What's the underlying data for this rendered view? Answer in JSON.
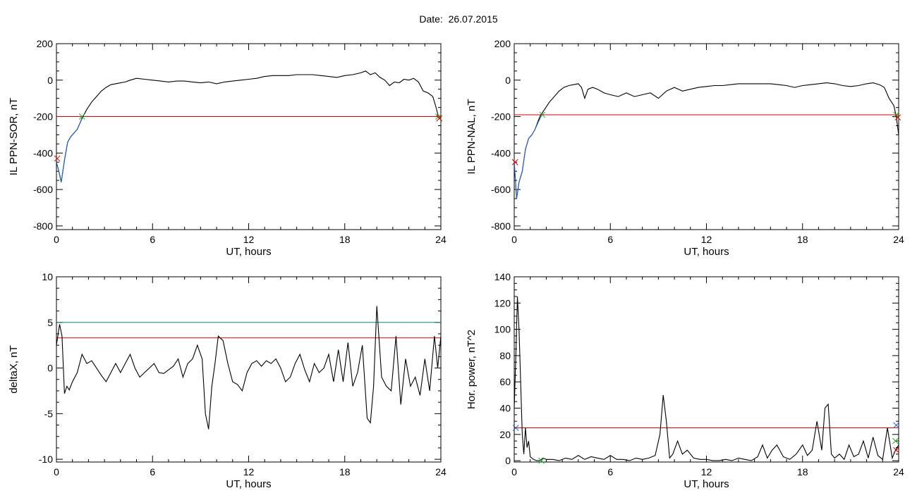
{
  "title": "Date:  26.07.2015",
  "chart_data": [
    {
      "type": "line",
      "xlabel": "UT, hours",
      "ylabel": "IL PPN-SOR, nT",
      "xlim": [
        0,
        24
      ],
      "ylim": [
        -820,
        200
      ],
      "xticks": [
        0,
        6,
        12,
        18,
        24
      ],
      "yticks": [
        -800,
        -600,
        -400,
        -200,
        0,
        200
      ],
      "series": [
        {
          "color": "#000000",
          "x": [
            0,
            0.15,
            0.3,
            0.5,
            0.7,
            0.9,
            1.1,
            1.3,
            1.6,
            1.9,
            2.2,
            2.5,
            2.8,
            3.1,
            3.4,
            3.7,
            4,
            4.3,
            4.6,
            5,
            5.5,
            6,
            6.5,
            7,
            7.5,
            8,
            8.5,
            9,
            9.5,
            10,
            10.5,
            11,
            11.5,
            12,
            12.5,
            13,
            13.5,
            14,
            14.5,
            15,
            15.5,
            16,
            16.5,
            17,
            17.5,
            18,
            18.5,
            19,
            19.3,
            19.6,
            19.9,
            20.2,
            20.5,
            20.8,
            21.1,
            21.4,
            21.7,
            22,
            22.3,
            22.6,
            22.9,
            23.2,
            23.5,
            23.7,
            23.85,
            24
          ],
          "y": [
            -450,
            -500,
            -560,
            -440,
            -340,
            -310,
            -290,
            -270,
            -210,
            -160,
            -120,
            -90,
            -60,
            -40,
            -25,
            -20,
            -15,
            -10,
            0,
            10,
            5,
            0,
            -5,
            -10,
            -5,
            -5,
            -10,
            -15,
            -10,
            -20,
            -10,
            -5,
            0,
            5,
            10,
            20,
            25,
            25,
            25,
            30,
            30,
            30,
            25,
            20,
            15,
            25,
            30,
            40,
            50,
            30,
            40,
            15,
            0,
            -30,
            -10,
            -15,
            5,
            0,
            10,
            -10,
            -60,
            -70,
            -90,
            -150,
            -200,
            -210
          ]
        },
        {
          "color": "#1f5fd0",
          "x": [
            0,
            0.15,
            0.3,
            0.5,
            0.7,
            0.9,
            1.1,
            1.3,
            1.5,
            1.6
          ],
          "y": [
            -450,
            -500,
            -560,
            -440,
            -340,
            -310,
            -290,
            -270,
            -230,
            -205
          ]
        }
      ],
      "hlines": [
        {
          "y": -200,
          "color": "#dd0000"
        }
      ],
      "markers": [
        {
          "x": 0.05,
          "y": -430,
          "color": "#dd0000"
        },
        {
          "x": 1.6,
          "y": -200,
          "color": "#22aa22"
        },
        {
          "x": 23.85,
          "y": -200,
          "color": "#22aa22"
        },
        {
          "x": 23.9,
          "y": -210,
          "color": "#dd0000"
        }
      ]
    },
    {
      "type": "line",
      "xlabel": "UT, hours",
      "ylabel": "IL PPN-NAL, nT",
      "xlim": [
        0,
        24
      ],
      "ylim": [
        -820,
        200
      ],
      "xticks": [
        0,
        6,
        12,
        18,
        24
      ],
      "yticks": [
        -800,
        -600,
        -400,
        -200,
        0,
        200
      ],
      "series": [
        {
          "color": "#000000",
          "x": [
            0,
            0.15,
            0.3,
            0.5,
            0.7,
            0.9,
            1.1,
            1.3,
            1.6,
            1.9,
            2.2,
            2.5,
            2.8,
            3.1,
            3.4,
            3.7,
            4,
            4.2,
            4.4,
            4.6,
            4.9,
            5.2,
            5.6,
            6,
            6.5,
            7,
            7.5,
            8,
            8.5,
            9,
            9.5,
            10,
            10.5,
            11,
            11.5,
            12,
            12.5,
            13,
            13.5,
            14,
            14.5,
            15,
            15.5,
            16,
            16.5,
            17,
            17.5,
            18,
            18.5,
            19,
            19.5,
            20,
            20.5,
            21,
            21.5,
            22,
            22.4,
            22.8,
            23.1,
            23.4,
            23.7,
            23.85,
            24
          ],
          "y": [
            -450,
            -650,
            -560,
            -500,
            -380,
            -320,
            -300,
            -270,
            -200,
            -160,
            -120,
            -90,
            -60,
            -40,
            -30,
            -25,
            -20,
            -40,
            -100,
            -50,
            -40,
            -50,
            -70,
            -80,
            -90,
            -70,
            -90,
            -80,
            -70,
            -100,
            -60,
            -40,
            -60,
            -50,
            -40,
            -35,
            -30,
            -30,
            -25,
            -20,
            -20,
            -20,
            -20,
            -20,
            -25,
            -30,
            -40,
            -30,
            -25,
            -20,
            -15,
            -20,
            -30,
            -35,
            -30,
            -20,
            -15,
            -25,
            -40,
            -100,
            -140,
            -200,
            -300
          ]
        },
        {
          "color": "#1f5fd0",
          "x": [
            0,
            0.15,
            0.3,
            0.5,
            0.7,
            0.9,
            1.1,
            1.3,
            1.5,
            1.7
          ],
          "y": [
            -450,
            -650,
            -560,
            -500,
            -380,
            -320,
            -300,
            -270,
            -230,
            -195
          ]
        }
      ],
      "hlines": [
        {
          "y": -190,
          "color": "#dd0000"
        }
      ],
      "markers": [
        {
          "x": 0.05,
          "y": -450,
          "color": "#dd0000"
        },
        {
          "x": 1.75,
          "y": -190,
          "color": "#22aa22"
        },
        {
          "x": 23.85,
          "y": -190,
          "color": "#22aa22"
        },
        {
          "x": 23.95,
          "y": -205,
          "color": "#dd0000"
        }
      ]
    },
    {
      "type": "line",
      "xlabel": "UT, hours",
      "ylabel": "deltaX, nT",
      "xlim": [
        0,
        24
      ],
      "ylim": [
        -10.3,
        10
      ],
      "xticks": [
        0,
        6,
        12,
        18,
        24
      ],
      "yticks": [
        -10,
        -5,
        0,
        5,
        10
      ],
      "series": [
        {
          "color": "#000000",
          "x": [
            0,
            0.2,
            0.35,
            0.5,
            0.65,
            0.8,
            1,
            1.3,
            1.6,
            1.9,
            2.2,
            2.5,
            2.8,
            3.1,
            3.4,
            3.7,
            4,
            4.3,
            4.6,
            4.9,
            5.2,
            5.5,
            5.8,
            6.1,
            6.4,
            6.7,
            7,
            7.3,
            7.6,
            7.9,
            8.2,
            8.5,
            8.8,
            9.1,
            9.3,
            9.5,
            9.7,
            9.9,
            10.1,
            10.4,
            10.7,
            11,
            11.3,
            11.6,
            11.9,
            12.2,
            12.5,
            12.8,
            13.1,
            13.4,
            13.7,
            14,
            14.3,
            14.6,
            14.9,
            15.2,
            15.5,
            15.8,
            16.1,
            16.4,
            16.7,
            17,
            17.3,
            17.6,
            17.9,
            18.2,
            18.5,
            18.8,
            19.1,
            19.4,
            19.6,
            19.8,
            20,
            20.3,
            20.6,
            20.9,
            21.2,
            21.5,
            21.8,
            22.1,
            22.4,
            22.7,
            23,
            23.3,
            23.6,
            23.8,
            24
          ],
          "y": [
            2.5,
            4.8,
            3.5,
            -2.8,
            -2,
            -2.4,
            -1.5,
            -0.5,
            1.5,
            0.5,
            0.8,
            0,
            -0.8,
            -1.5,
            -0.5,
            0.5,
            -0.5,
            0.5,
            1.5,
            0,
            -1,
            -0.5,
            0,
            0.5,
            -0.5,
            -0.6,
            -0.2,
            0.2,
            1,
            -1,
            0.5,
            1,
            2.5,
            1,
            -5,
            -6.7,
            -2,
            0.5,
            3.5,
            3,
            0.5,
            -1.5,
            -1.8,
            -2.5,
            -0.5,
            0.5,
            0.8,
            0.2,
            0.8,
            0.5,
            1,
            0,
            -1.5,
            -1,
            0.5,
            1.5,
            -0.2,
            -1.5,
            0.5,
            -0.5,
            0,
            1.5,
            -1.5,
            2,
            -1.5,
            2.8,
            -2,
            -0.5,
            2.5,
            -5.5,
            -6,
            -2,
            6.8,
            -1,
            -2,
            -2.5,
            3.5,
            -4,
            1,
            -2,
            -1,
            -3,
            1,
            -2.5,
            3.5,
            0,
            3.5
          ]
        }
      ],
      "hlines": [
        {
          "y": 5,
          "color": "#008888"
        },
        {
          "y": 3.3,
          "color": "#dd0000"
        }
      ],
      "markers": []
    },
    {
      "type": "line",
      "xlabel": "UT, hours",
      "ylabel": "Hor. power, nT^2",
      "xlim": [
        0,
        24
      ],
      "ylim": [
        -1,
        140
      ],
      "xticks": [
        0,
        6,
        12,
        18,
        24
      ],
      "yticks": [
        0,
        20,
        40,
        60,
        80,
        100,
        120,
        140
      ],
      "series": [
        {
          "color": "#000000",
          "x": [
            0,
            0.1,
            0.2,
            0.3,
            0.4,
            0.5,
            0.6,
            0.7,
            0.8,
            0.9,
            1,
            1.2,
            1.4,
            1.6,
            1.8,
            2,
            2.4,
            2.8,
            3.2,
            3.6,
            4,
            4.4,
            4.8,
            5.2,
            5.6,
            6,
            6.4,
            6.8,
            7.2,
            7.6,
            8,
            8.4,
            8.8,
            9.1,
            9.3,
            9.5,
            9.7,
            9.9,
            10.2,
            10.5,
            10.8,
            11.2,
            11.6,
            12,
            12.4,
            12.8,
            13.2,
            13.6,
            14,
            14.4,
            14.8,
            15.2,
            15.5,
            15.8,
            16.1,
            16.4,
            16.8,
            17.2,
            17.6,
            18,
            18.3,
            18.6,
            18.9,
            19.2,
            19.4,
            19.6,
            19.8,
            20,
            20.3,
            20.6,
            20.9,
            21.2,
            21.5,
            21.8,
            22.1,
            22.4,
            22.7,
            23,
            23.3,
            23.6,
            23.8,
            24
          ],
          "y": [
            40,
            80,
            125,
            100,
            60,
            20,
            5,
            25,
            10,
            15,
            3,
            1,
            0,
            0,
            2,
            1,
            1,
            0,
            2,
            1,
            4,
            1,
            3,
            2,
            1,
            4,
            1,
            1,
            0,
            2,
            1,
            2,
            4,
            20,
            50,
            30,
            2,
            5,
            15,
            5,
            8,
            2,
            1,
            1,
            0,
            0,
            1,
            0,
            2,
            1,
            0,
            3,
            12,
            2,
            8,
            12,
            3,
            1,
            5,
            12,
            4,
            8,
            30,
            8,
            40,
            43,
            5,
            2,
            5,
            1,
            12,
            3,
            5,
            15,
            2,
            18,
            4,
            1,
            25,
            2,
            8,
            12
          ]
        }
      ],
      "hlines": [
        {
          "y": 25,
          "color": "#dd0000"
        }
      ],
      "markers": [
        {
          "x": 0.1,
          "y": 25,
          "color": "#1f5fd0"
        },
        {
          "x": 23.85,
          "y": 27,
          "color": "#1f5fd0"
        },
        {
          "x": 23.85,
          "y": 8,
          "color": "#dd0000"
        },
        {
          "x": 1.7,
          "y": 0,
          "color": "#22aa22"
        },
        {
          "x": 23.8,
          "y": 15,
          "color": "#22aa22"
        }
      ]
    }
  ]
}
